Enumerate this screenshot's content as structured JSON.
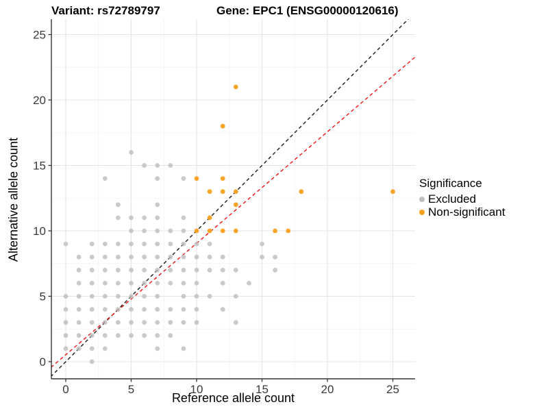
{
  "page": {
    "background": "#ffffff"
  },
  "header": {
    "variant_title": "Variant: rs72789797",
    "gene_title": "Gene: EPC1 (ENSG00000120616)"
  },
  "legend": {
    "title": "Significance"
  },
  "chart_data": {
    "type": "scatter",
    "xlabel": "Reference allele count",
    "ylabel": "Alternative allele count",
    "x_ticks": [
      0,
      5,
      10,
      15,
      20,
      25
    ],
    "y_ticks": [
      0,
      5,
      10,
      15,
      20,
      25
    ],
    "x_minor_ticks": [
      2.5,
      7.5,
      12.5,
      17.5,
      22.5
    ],
    "y_minor_ticks": [
      2.5,
      7.5,
      12.5,
      17.5,
      22.5
    ],
    "xlim": [
      -1.3,
      26.7
    ],
    "ylim": [
      -1.3,
      26.2
    ],
    "grid": true,
    "legend_position": "right",
    "axis_color": "#333333",
    "tick_label_color": "#3a3a3a",
    "major_grid_color": "#e4e4e4",
    "minor_grid_color": "#f2f2f2",
    "series": [
      {
        "name": "Excluded",
        "color": "#bdbdbd",
        "points": [
          [
            2,
            0
          ],
          [
            0,
            1
          ],
          [
            1,
            1
          ],
          [
            2,
            1
          ],
          [
            3,
            1
          ],
          [
            7,
            1
          ],
          [
            9,
            1
          ],
          [
            0,
            2
          ],
          [
            1,
            2
          ],
          [
            2,
            2
          ],
          [
            3,
            2
          ],
          [
            4,
            2
          ],
          [
            5,
            2
          ],
          [
            6,
            2
          ],
          [
            7,
            2
          ],
          [
            8,
            2
          ],
          [
            0,
            3
          ],
          [
            1,
            3
          ],
          [
            2,
            3
          ],
          [
            3,
            3
          ],
          [
            4,
            3
          ],
          [
            5,
            3
          ],
          [
            6,
            3
          ],
          [
            7,
            3
          ],
          [
            8,
            3
          ],
          [
            9,
            3
          ],
          [
            10,
            3
          ],
          [
            13,
            3
          ],
          [
            0,
            4
          ],
          [
            1,
            4
          ],
          [
            2,
            4
          ],
          [
            3,
            4
          ],
          [
            4,
            4
          ],
          [
            5,
            4
          ],
          [
            6,
            4
          ],
          [
            7,
            4
          ],
          [
            8,
            4
          ],
          [
            9,
            4
          ],
          [
            10,
            4
          ],
          [
            12,
            4
          ],
          [
            0,
            5
          ],
          [
            1,
            5
          ],
          [
            2,
            5
          ],
          [
            3,
            5
          ],
          [
            4,
            5
          ],
          [
            5,
            5
          ],
          [
            6,
            5
          ],
          [
            7,
            5
          ],
          [
            9,
            5
          ],
          [
            10,
            5
          ],
          [
            11,
            5
          ],
          [
            13,
            5
          ],
          [
            1,
            6
          ],
          [
            2,
            6
          ],
          [
            3,
            6
          ],
          [
            4,
            6
          ],
          [
            5,
            6
          ],
          [
            6,
            6
          ],
          [
            7,
            6
          ],
          [
            8,
            6
          ],
          [
            9,
            6
          ],
          [
            10,
            6
          ],
          [
            12,
            6
          ],
          [
            14,
            6
          ],
          [
            1,
            7
          ],
          [
            2,
            7
          ],
          [
            3,
            7
          ],
          [
            4,
            7
          ],
          [
            5,
            7
          ],
          [
            6,
            7
          ],
          [
            7,
            7
          ],
          [
            8,
            7
          ],
          [
            9,
            7
          ],
          [
            10,
            7
          ],
          [
            11,
            7
          ],
          [
            12,
            7
          ],
          [
            13,
            7
          ],
          [
            16,
            7
          ],
          [
            1,
            8
          ],
          [
            2,
            8
          ],
          [
            3,
            8
          ],
          [
            4,
            8
          ],
          [
            5,
            8
          ],
          [
            6,
            8
          ],
          [
            7,
            8
          ],
          [
            8,
            8
          ],
          [
            9,
            8
          ],
          [
            10,
            8
          ],
          [
            11,
            8
          ],
          [
            12,
            8
          ],
          [
            15,
            8
          ],
          [
            16,
            8
          ],
          [
            0,
            9
          ],
          [
            2,
            9
          ],
          [
            3,
            9
          ],
          [
            4,
            9
          ],
          [
            5,
            9
          ],
          [
            6,
            9
          ],
          [
            7,
            9
          ],
          [
            8,
            9
          ],
          [
            9,
            9
          ],
          [
            10,
            9
          ],
          [
            11,
            9
          ],
          [
            15,
            9
          ],
          [
            5,
            10
          ],
          [
            6,
            10
          ],
          [
            7,
            10
          ],
          [
            8,
            10
          ],
          [
            9,
            10
          ],
          [
            4,
            11
          ],
          [
            5,
            11
          ],
          [
            6,
            11
          ],
          [
            7,
            11
          ],
          [
            9,
            11
          ],
          [
            4,
            12
          ],
          [
            7,
            12
          ],
          [
            3,
            14
          ],
          [
            7,
            14
          ],
          [
            9,
            14
          ],
          [
            6,
            15
          ],
          [
            7,
            15
          ],
          [
            8,
            15
          ],
          [
            5,
            16
          ]
        ]
      },
      {
        "name": "Non-significant",
        "color": "#f9a01f",
        "points": [
          [
            10,
            10
          ],
          [
            11,
            10
          ],
          [
            12,
            10
          ],
          [
            13,
            10
          ],
          [
            16,
            10
          ],
          [
            17,
            10
          ],
          [
            11,
            11
          ],
          [
            13,
            12
          ],
          [
            11,
            13
          ],
          [
            12,
            13
          ],
          [
            13,
            13
          ],
          [
            18,
            13
          ],
          [
            25,
            13
          ],
          [
            10,
            14
          ],
          [
            12,
            14
          ],
          [
            12,
            18
          ],
          [
            13,
            21
          ]
        ]
      }
    ],
    "lines": [
      {
        "name": "identity",
        "slope": 1,
        "intercept": 0,
        "color": "#151515",
        "dash": "5,4"
      },
      {
        "name": "fit",
        "slope": 0.852,
        "intercept": 0.53,
        "color": "#ee1111",
        "dash": "5,4"
      }
    ]
  }
}
